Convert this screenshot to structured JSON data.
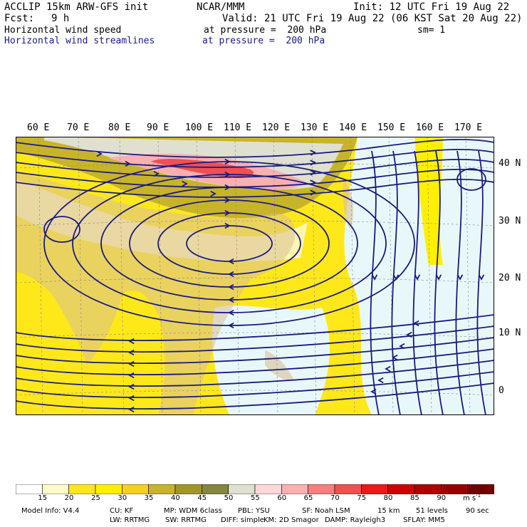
{
  "header": {
    "model": "ACCLIP 15km ARW-GFS init",
    "org": "NCAR/MMM",
    "init": "Init: 12 UTC Fri 19 Aug 22",
    "fcst_label": "Fcst:",
    "fcst_value": "9 h",
    "valid": "Valid: 21 UTC Fri 19 Aug 22 (06 KST Sat 20 Aug 22)",
    "field1": "Horizontal wind speed",
    "field1_level": "at pressure =  200 hPa",
    "sm": "sm= 1",
    "field2": "Horizontal wind streamlines",
    "field2_level": "at pressure =  200 hPa"
  },
  "map": {
    "lon_labels": [
      "60 E",
      "70 E",
      "80 E",
      "90 E",
      "100 E",
      "110 E",
      "120 E",
      "130 E",
      "140 E",
      "150 E",
      "160 E",
      "170 E"
    ],
    "lat_labels": [
      "40 N",
      "30 N",
      "20 N",
      "10 N",
      "0"
    ],
    "lon_range": [
      55,
      180
    ],
    "lat_range": [
      -4,
      45
    ],
    "land_color": "#d8c098",
    "streamline_color": "#1a1a80"
  },
  "colorbar": {
    "labels": [
      "15",
      "20",
      "25",
      "30",
      "35",
      "40",
      "45",
      "50",
      "55",
      "60",
      "65",
      "70",
      "75",
      "80",
      "85",
      "90"
    ],
    "colors": [
      "#ffffff",
      "#fffacc",
      "#ffe81a",
      "#fff000",
      "#f2d21e",
      "#c8b428",
      "#a0962a",
      "#868640",
      "#e0e0d0",
      "#fcd8d8",
      "#f8b0b0",
      "#f48080",
      "#f05050",
      "#ee1818",
      "#d00000",
      "#b00000",
      "#980000",
      "#700000"
    ],
    "unit": "m s",
    "unit_exp": "-1"
  },
  "footer": {
    "line1": [
      "Model Info: V4.4",
      "CU: KF",
      "MP: WDM 6class",
      "PBL: YSU",
      "SF: Noah LSM",
      "15 km",
      "51 levels",
      "90 sec"
    ],
    "line2": [
      "LW: RRTMG",
      "SW: RRTMG",
      "DIFF: simple",
      "KM: 2D Smagor",
      "DAMP: Rayleigh3",
      "SFLAY: MM5"
    ]
  }
}
